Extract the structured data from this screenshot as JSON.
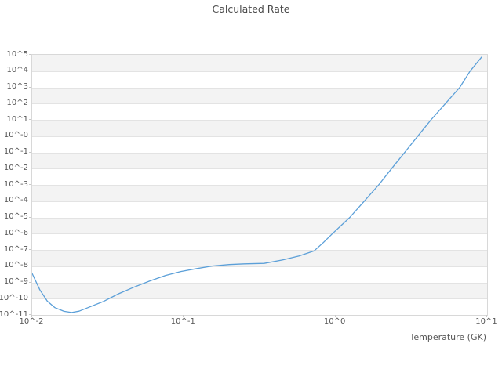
{
  "title": "Calculated Rate",
  "xlabel": "Temperature (GK)",
  "axes": {
    "y_tick_labels": [
      "10^5",
      "10^4",
      "10^3",
      "10^2",
      "10^1",
      "10^-0",
      "10^-1",
      "10^-2",
      "10^-3",
      "10^-4",
      "10^-5",
      "10^-6",
      "10^-7",
      "10^-8",
      "10^-9",
      "10^-10",
      "10^-11"
    ],
    "x_tick_labels": [
      "10^-2",
      "10^-1",
      "10^0",
      "10^1"
    ]
  },
  "colors": {
    "line": "#5b9fd8",
    "band": "#f3f3f3",
    "grid": "#e3e3e3",
    "border": "#d8d8d8",
    "tick_text": "#555555",
    "title_text": "#4a4a4a"
  },
  "chart_data": {
    "type": "line",
    "title": "Calculated Rate",
    "xlabel": "Temperature (GK)",
    "ylabel": "",
    "x_scale": "log10",
    "y_scale": "log10",
    "xlim_log10": [
      -2,
      1
    ],
    "ylim_log10": [
      -11,
      5
    ],
    "grid": "horizontal-stripes",
    "legend": "none",
    "series": [
      {
        "name": "Calculated Rate",
        "color": "#5b9fd8",
        "points_log10_T_vs_log10_rate": [
          [
            -2.0,
            -8.45
          ],
          [
            -1.95,
            -9.45
          ],
          [
            -1.9,
            -10.15
          ],
          [
            -1.85,
            -10.55
          ],
          [
            -1.79,
            -10.78
          ],
          [
            -1.74,
            -10.85
          ],
          [
            -1.69,
            -10.77
          ],
          [
            -1.64,
            -10.58
          ],
          [
            -1.53,
            -10.17
          ],
          [
            -1.43,
            -9.7
          ],
          [
            -1.33,
            -9.3
          ],
          [
            -1.22,
            -8.9
          ],
          [
            -1.12,
            -8.57
          ],
          [
            -1.02,
            -8.33
          ],
          [
            -0.91,
            -8.14
          ],
          [
            -0.81,
            -7.99
          ],
          [
            -0.7,
            -7.9
          ],
          [
            -0.6,
            -7.86
          ],
          [
            -0.47,
            -7.83
          ],
          [
            -0.35,
            -7.62
          ],
          [
            -0.24,
            -7.37
          ],
          [
            -0.14,
            -7.06
          ],
          [
            -0.08,
            -6.55
          ],
          [
            -0.02,
            -6.0
          ],
          [
            0.095,
            -5.0
          ],
          [
            0.19,
            -4.0
          ],
          [
            0.285,
            -3.0
          ],
          [
            0.37,
            -2.0
          ],
          [
            0.457,
            -1.0
          ],
          [
            0.543,
            0.0
          ],
          [
            0.63,
            1.0
          ],
          [
            0.725,
            2.0
          ],
          [
            0.82,
            3.0
          ],
          [
            0.888,
            4.0
          ],
          [
            0.964,
            4.86
          ]
        ]
      }
    ]
  }
}
